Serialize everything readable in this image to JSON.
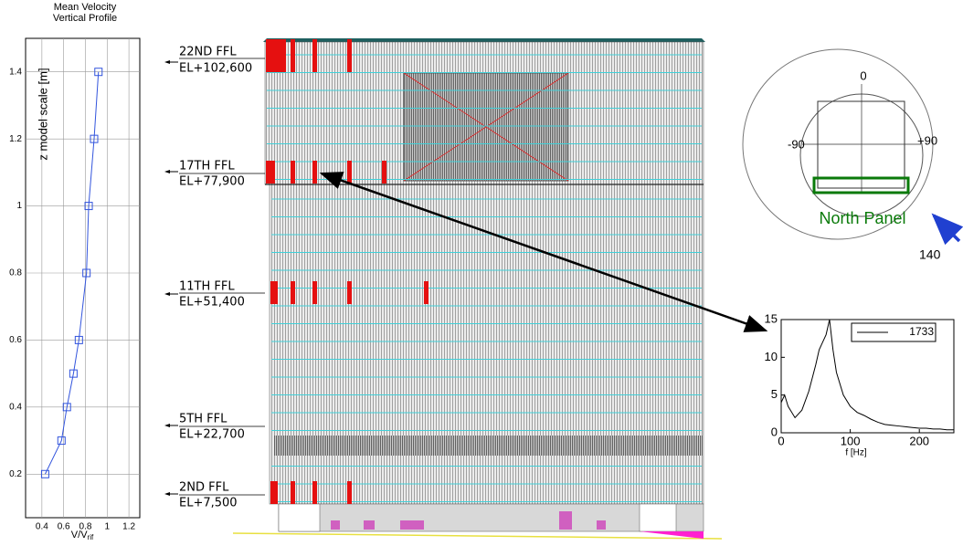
{
  "chart_data": [
    {
      "type": "line",
      "title": "Mean Velocity Vertical Profile",
      "xlabel": "V/V",
      "xlabel_sub": "rif",
      "ylabel": "z model scale [m]",
      "x": [
        0.43,
        0.58,
        0.63,
        0.69,
        0.74,
        0.81,
        0.83,
        0.88,
        0.92
      ],
      "series": [
        {
          "color": "#3355dd",
          "values": [
            0.2,
            0.3,
            0.4,
            0.5,
            0.6,
            0.8,
            1.0,
            1.2,
            1.4
          ]
        }
      ],
      "xlim": [
        0.25,
        1.3
      ],
      "xticks": [
        0.4,
        0.6,
        0.8,
        1,
        1.2
      ],
      "ylim": [
        0.07,
        1.5
      ],
      "yticks": [
        0.2,
        0.4,
        0.6,
        0.8,
        1,
        1.2,
        1.4
      ],
      "grid": true
    },
    {
      "type": "line",
      "xlabel": "f [Hz]",
      "x": [
        0,
        5,
        10,
        20,
        30,
        40,
        50,
        55,
        60,
        65,
        70,
        75,
        80,
        90,
        100,
        110,
        120,
        130,
        140,
        150,
        160,
        170,
        180,
        190,
        200,
        210,
        220,
        230,
        240,
        250
      ],
      "series": [
        {
          "name": "1733",
          "color": "#000000",
          "values": [
            4,
            5,
            3.5,
            2,
            3,
            5.5,
            9,
            11,
            12,
            13,
            15,
            11,
            8,
            5,
            3.5,
            2.7,
            2.3,
            1.8,
            1.4,
            1.1,
            1,
            0.9,
            0.8,
            0.7,
            0.6,
            0.6,
            0.5,
            0.5,
            0.4,
            0.4
          ]
        }
      ],
      "xlim": [
        0,
        250
      ],
      "xticks": [
        0,
        100,
        200
      ],
      "ylim": [
        0,
        15
      ],
      "yticks": [
        0,
        5,
        10,
        15
      ],
      "grid": false,
      "legend": "upper right"
    }
  ],
  "elevation": {
    "levels": [
      {
        "floor": "22ND FFL",
        "elevation": "EL+102,600"
      },
      {
        "floor": "17TH FFL",
        "elevation": "EL+77,900"
      },
      {
        "floor": "11TH FFL",
        "elevation": "EL+51,400"
      },
      {
        "floor": "5TH FFL",
        "elevation": "EL+22,700"
      },
      {
        "floor": "2ND FFL",
        "elevation": "EL+7,500"
      }
    ]
  },
  "compass": {
    "top": "0",
    "left": "-90",
    "right": "+90",
    "panel": "North Panel",
    "wind": "140"
  }
}
